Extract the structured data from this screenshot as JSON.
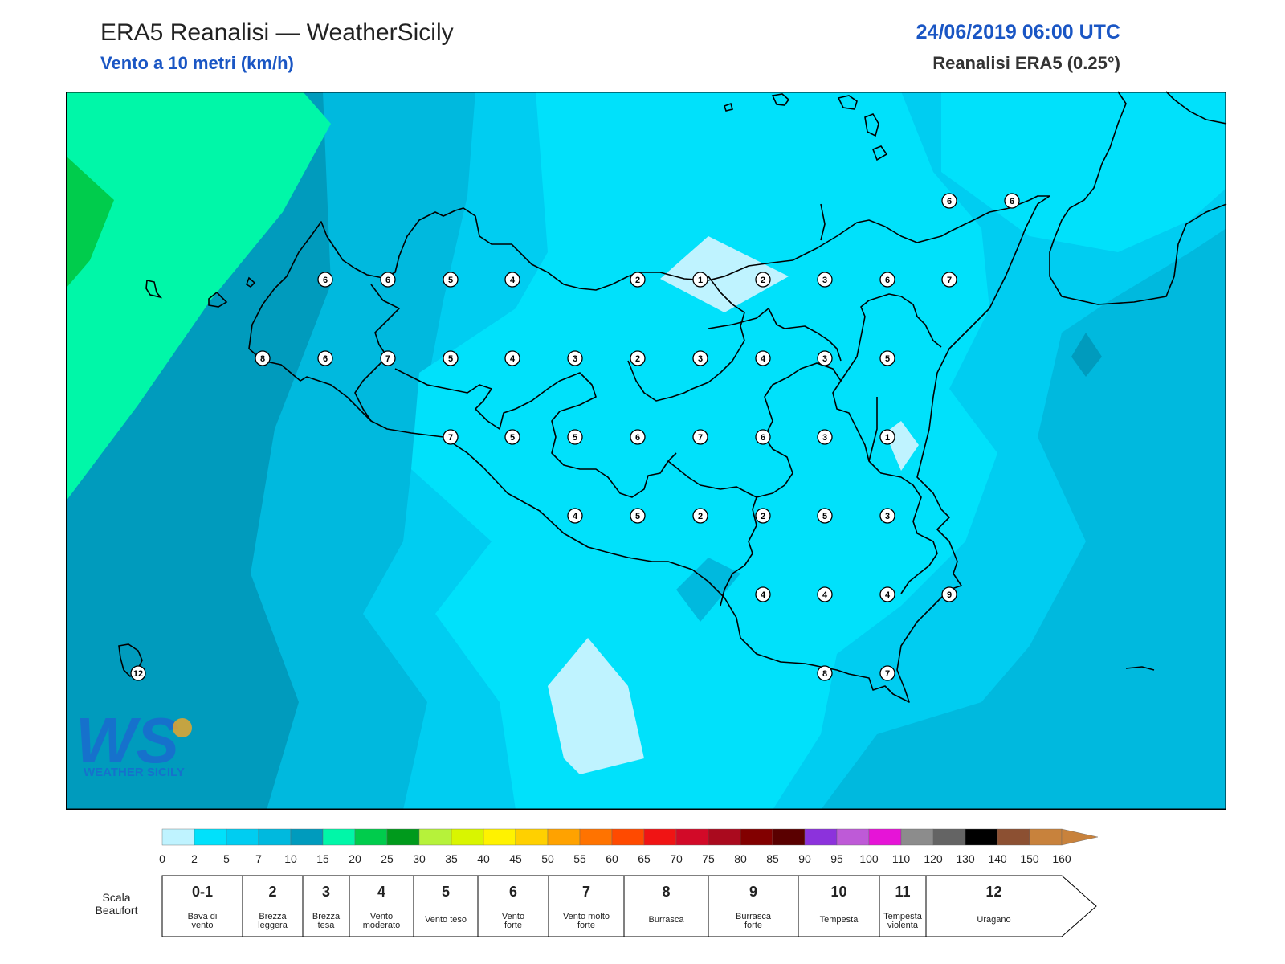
{
  "header": {
    "title": "ERA5 Reanalisi — WeatherSicily",
    "subtitle": "Vento a 10 metri (km/h)",
    "datetime": "24/06/2019 06:00 UTC",
    "model": "Reanalisi ERA5 (0.25°)"
  },
  "logo": {
    "letters": "WS",
    "text": "WEATHER SICILY"
  },
  "stations": [
    {
      "v": "6"
    },
    {
      "v": "6"
    },
    {
      "v": "5"
    },
    {
      "v": "4"
    },
    {
      "v": "2"
    },
    {
      "v": "1"
    },
    {
      "v": "2"
    },
    {
      "v": "3"
    },
    {
      "v": "6"
    },
    {
      "v": "7"
    },
    {
      "v": "8"
    },
    {
      "v": "6"
    },
    {
      "v": "7"
    },
    {
      "v": "5"
    },
    {
      "v": "4"
    },
    {
      "v": "3"
    },
    {
      "v": "2"
    },
    {
      "v": "3"
    },
    {
      "v": "4"
    },
    {
      "v": "3"
    },
    {
      "v": "5"
    },
    {
      "v": "7"
    },
    {
      "v": "5"
    },
    {
      "v": "5"
    },
    {
      "v": "6"
    },
    {
      "v": "7"
    },
    {
      "v": "6"
    },
    {
      "v": "3"
    },
    {
      "v": "1"
    },
    {
      "v": "4"
    },
    {
      "v": "5"
    },
    {
      "v": "2"
    },
    {
      "v": "2"
    },
    {
      "v": "5"
    },
    {
      "v": "3"
    },
    {
      "v": "4"
    },
    {
      "v": "4"
    },
    {
      "v": "4"
    },
    {
      "v": "9"
    },
    {
      "v": "8"
    },
    {
      "v": "7"
    },
    {
      "v": "6"
    },
    {
      "v": "6"
    },
    {
      "v": "12"
    }
  ],
  "colorbar": {
    "colors": [
      "#bff3ff",
      "#00e1fb",
      "#00cdf1",
      "#00b9de",
      "#009bbd",
      "#00f7a8",
      "#00cc4c",
      "#009a1c",
      "#b6f23a",
      "#d9f500",
      "#fff200",
      "#ffd000",
      "#ffa200",
      "#ff7300",
      "#ff4a00",
      "#f01414",
      "#d20a28",
      "#aa0a1e",
      "#820000",
      "#5a0000",
      "#8c32dc",
      "#be5ad7",
      "#e614d7",
      "#8c8c8c",
      "#646464",
      "#000000",
      "#8c5032",
      "#c8823c"
    ],
    "ticks": [
      "0",
      "2",
      "5",
      "7",
      "10",
      "15",
      "20",
      "25",
      "30",
      "35",
      "40",
      "45",
      "50",
      "55",
      "60",
      "65",
      "70",
      "75",
      "80",
      "85",
      "90",
      "95",
      "100",
      "110",
      "120",
      "130",
      "140",
      "150",
      "160"
    ]
  },
  "beaufort": {
    "label_line1": "Scala",
    "label_line2": "Beaufort",
    "cells": [
      {
        "num": "0-1",
        "l1": "Bava di",
        "l2": "vento"
      },
      {
        "num": "2",
        "l1": "Brezza",
        "l2": "leggera"
      },
      {
        "num": "3",
        "l1": "Brezza",
        "l2": "tesa"
      },
      {
        "num": "4",
        "l1": "Vento",
        "l2": "moderato"
      },
      {
        "num": "5",
        "l1": "Vento teso",
        "l2": ""
      },
      {
        "num": "6",
        "l1": "Vento",
        "l2": "forte"
      },
      {
        "num": "7",
        "l1": "Vento molto",
        "l2": "forte"
      },
      {
        "num": "8",
        "l1": "Burrasca",
        "l2": ""
      },
      {
        "num": "9",
        "l1": "Burrasca",
        "l2": "forte"
      },
      {
        "num": "10",
        "l1": "Tempesta",
        "l2": ""
      },
      {
        "num": "11",
        "l1": "Tempesta",
        "l2": "violenta"
      },
      {
        "num": "12",
        "l1": "Uragano",
        "l2": ""
      }
    ]
  }
}
